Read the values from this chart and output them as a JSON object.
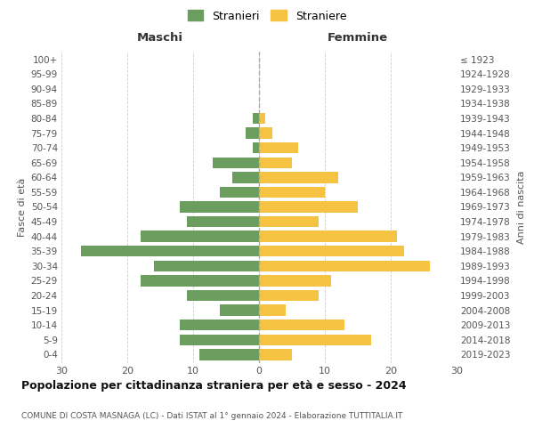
{
  "age_groups": [
    "0-4",
    "5-9",
    "10-14",
    "15-19",
    "20-24",
    "25-29",
    "30-34",
    "35-39",
    "40-44",
    "45-49",
    "50-54",
    "55-59",
    "60-64",
    "65-69",
    "70-74",
    "75-79",
    "80-84",
    "85-89",
    "90-94",
    "95-99",
    "100+"
  ],
  "birth_years": [
    "2019-2023",
    "2014-2018",
    "2009-2013",
    "2004-2008",
    "1999-2003",
    "1994-1998",
    "1989-1993",
    "1984-1988",
    "1979-1983",
    "1974-1978",
    "1969-1973",
    "1964-1968",
    "1959-1963",
    "1954-1958",
    "1949-1953",
    "1944-1948",
    "1939-1943",
    "1934-1938",
    "1929-1933",
    "1924-1928",
    "≤ 1923"
  ],
  "males": [
    9,
    12,
    12,
    6,
    11,
    18,
    16,
    27,
    18,
    11,
    12,
    6,
    4,
    7,
    1,
    2,
    1,
    0,
    0,
    0,
    0
  ],
  "females": [
    5,
    17,
    13,
    4,
    9,
    11,
    26,
    22,
    21,
    9,
    15,
    10,
    12,
    5,
    6,
    2,
    1,
    0,
    0,
    0,
    0
  ],
  "male_color": "#6b9e5e",
  "female_color": "#f5c242",
  "title_main": "Popolazione per cittadinanza straniera per età e sesso - 2024",
  "title_sub": "COMUNE DI COSTA MASNAGA (LC) - Dati ISTAT al 1° gennaio 2024 - Elaborazione TUTTITALIA.IT",
  "legend_male": "Stranieri",
  "legend_female": "Straniere",
  "left_header": "Maschi",
  "right_header": "Femmine",
  "left_ylabel": "Fasce di età",
  "right_ylabel": "Anni di nascita",
  "xlim": 30,
  "bg_color": "#ffffff",
  "grid_color": "#cccccc",
  "bar_height": 0.75,
  "xtick_labels": [
    "30",
    "20",
    "10",
    "0",
    "10",
    "20",
    "30"
  ],
  "xticks": [
    -30,
    -20,
    -10,
    0,
    10,
    20,
    30
  ]
}
